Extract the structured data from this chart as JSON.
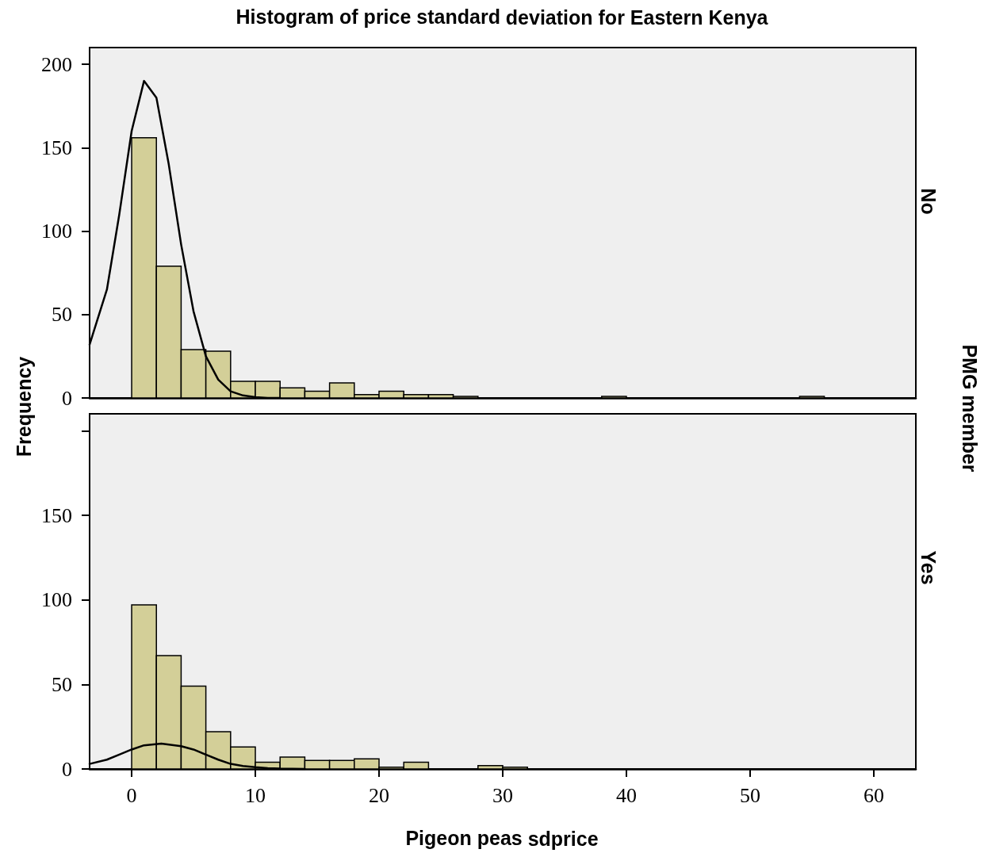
{
  "chart_data": [
    {
      "type": "histogram",
      "title": "Histogram of price standard deviation for Eastern Kenya",
      "ylabel": "Frequency",
      "annotations": [
        "No",
        "PMG member"
      ],
      "color": "#d3cf98",
      "bins": [
        0,
        2,
        4,
        6,
        8,
        10,
        12,
        14,
        16,
        18,
        20,
        22,
        24,
        26,
        28,
        30,
        32,
        34,
        36,
        38,
        40,
        42,
        44,
        46,
        48,
        50,
        52,
        54,
        56
      ],
      "values": [
        156,
        79,
        29,
        28,
        10,
        10,
        6,
        4,
        9,
        2,
        4,
        2,
        2,
        1,
        0,
        0,
        0,
        0,
        0,
        1,
        0,
        0,
        0,
        0,
        0,
        0,
        0,
        1
      ],
      "series": [
        {
          "type": "line",
          "color": "#000000",
          "x": [
            -3.4,
            -2,
            -1,
            0,
            1,
            2,
            3,
            4,
            5,
            6,
            7,
            8,
            9,
            10,
            11,
            12
          ],
          "values": [
            32,
            65,
            110,
            160,
            190,
            180,
            140,
            92,
            52,
            25,
            11,
            4,
            1.5,
            0.5,
            0,
            0
          ]
        }
      ],
      "xlim": [
        -3.4,
        63.4
      ],
      "xticks": [
        0,
        10,
        20,
        30,
        40,
        50,
        60
      ],
      "ylim": [
        0,
        210
      ],
      "yticks": [
        0,
        50,
        100,
        150,
        200
      ],
      "tick_labels": "y",
      "grid": false,
      "marker": "none",
      "line_style": "solid"
    },
    {
      "type": "histogram",
      "xlabel": "Pigeon peas sdprice",
      "annotations": [
        "Yes"
      ],
      "color": "#d3cf98",
      "bins": [
        0,
        2,
        4,
        6,
        8,
        10,
        12,
        14,
        16,
        18,
        20,
        22,
        24,
        26,
        28,
        30,
        32,
        34,
        36,
        38,
        40,
        42,
        44,
        46,
        48,
        50,
        52,
        54,
        56
      ],
      "values": [
        97,
        67,
        49,
        22,
        13,
        4,
        7,
        5,
        5,
        6,
        1,
        4,
        0,
        0,
        2,
        1,
        0,
        0,
        0,
        0,
        0,
        0,
        0,
        0,
        0,
        0,
        0,
        0
      ],
      "series": [
        {
          "type": "line",
          "color": "#000000",
          "x": [
            -3.4,
            -2,
            -1,
            0,
            1,
            2.4,
            4,
            5,
            6,
            7,
            8,
            9,
            10,
            11,
            12,
            14
          ],
          "values": [
            3,
            5.5,
            8.5,
            11.5,
            14,
            15,
            13.5,
            11.5,
            8.5,
            5.5,
            3,
            1.8,
            1,
            0.5,
            0.2,
            0
          ]
        }
      ],
      "xlim": [
        -3.4,
        63.4
      ],
      "xticks": [
        0,
        10,
        20,
        30,
        40,
        50,
        60
      ],
      "ylim": [
        0,
        210
      ],
      "yticks": [
        0,
        50,
        100,
        150,
        {
          "value": 200,
          "label": null
        }
      ],
      "grid": false,
      "marker": "none",
      "line_style": "solid"
    }
  ]
}
